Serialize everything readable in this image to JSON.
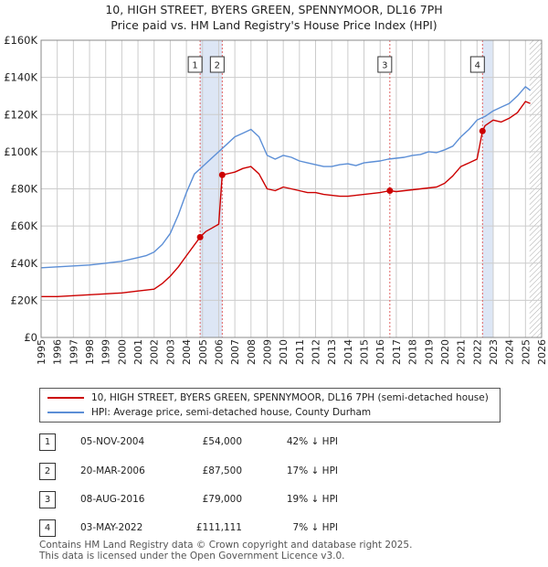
{
  "title_line1": "10, HIGH STREET, BYERS GREEN, SPENNYMOOR, DL16 7PH",
  "title_line2": "Price paid vs. HM Land Registry's House Price Index (HPI)",
  "colors": {
    "red": "#cc0000",
    "blue": "#5b8ed6",
    "shade": "#dde6f5",
    "grid": "#cccccc",
    "vline": "#e06060"
  },
  "legend": {
    "red_label": "10, HIGH STREET, BYERS GREEN, SPENNYMOOR, DL16 7PH (semi-detached house)",
    "blue_label": "HPI: Average price, semi-detached house, County Durham"
  },
  "transactions": [
    {
      "num": "1",
      "date": "05-NOV-2004",
      "price": "£54,000",
      "hpi": "42% ↓ HPI"
    },
    {
      "num": "2",
      "date": "20-MAR-2006",
      "price": "£87,500",
      "hpi": "17% ↓ HPI"
    },
    {
      "num": "3",
      "date": "08-AUG-2016",
      "price": "£79,000",
      "hpi": "19% ↓ HPI"
    },
    {
      "num": "4",
      "date": "03-MAY-2022",
      "price": "£111,111",
      "hpi": "7% ↓ HPI"
    }
  ],
  "footer": {
    "line1": "Contains HM Land Registry data © Crown copyright and database right 2025.",
    "line2": "This data is licensed under the Open Government Licence v3.0."
  },
  "chart_data": {
    "type": "line",
    "title": "10, HIGH STREET, BYERS GREEN, SPENNYMOOR, DL16 7PH",
    "subtitle": "Price paid vs. HM Land Registry's House Price Index (HPI)",
    "xlim": [
      1995,
      2026
    ],
    "ylim": [
      0,
      160000
    ],
    "y_ticks": [
      0,
      20000,
      40000,
      60000,
      80000,
      100000,
      120000,
      140000,
      160000
    ],
    "y_tick_labels": [
      "£0",
      "£20K",
      "£40K",
      "£60K",
      "£80K",
      "£100K",
      "£120K",
      "£140K",
      "£160K"
    ],
    "x_ticks": [
      1995,
      1996,
      1997,
      1998,
      1999,
      2000,
      2001,
      2002,
      2003,
      2004,
      2005,
      2006,
      2007,
      2008,
      2009,
      2010,
      2011,
      2012,
      2013,
      2014,
      2015,
      2016,
      2017,
      2018,
      2019,
      2020,
      2021,
      2022,
      2023,
      2024,
      2025,
      2026
    ],
    "x_tick_labels": [
      "1995",
      "1996",
      "1997",
      "1998",
      "1999",
      "2000",
      "2001",
      "2002",
      "2003",
      "2004",
      "2005",
      "2006",
      "2007",
      "2008",
      "2009",
      "2010",
      "2011",
      "2012",
      "2013",
      "2014",
      "2015",
      "2016",
      "2017",
      "2018",
      "2019",
      "2020",
      "2021",
      "2022",
      "2023",
      "2024",
      "2025",
      "2026"
    ],
    "shaded_ranges": [
      [
        2004.85,
        2006.22
      ],
      [
        2022.34,
        2023.0
      ]
    ],
    "hatched_from": 2025.25,
    "markers": [
      {
        "label": "1",
        "x": 2004.85,
        "y": 54000
      },
      {
        "label": "2",
        "x": 2006.22,
        "y": 87500
      },
      {
        "label": "3",
        "x": 2016.6,
        "y": 79000
      },
      {
        "label": "4",
        "x": 2022.34,
        "y": 111111
      }
    ],
    "series": [
      {
        "name": "HPI: Average price, semi-detached house, County Durham",
        "color": "#5b8ed6",
        "x": [
          1995,
          1996,
          1997,
          1998,
          1999,
          2000,
          2001,
          2001.5,
          2002,
          2002.5,
          2003,
          2003.5,
          2004,
          2004.5,
          2005,
          2005.5,
          2006,
          2006.5,
          2007,
          2007.5,
          2008,
          2008.5,
          2009,
          2009.5,
          2010,
          2010.5,
          2011,
          2011.5,
          2012,
          2012.5,
          2013,
          2013.5,
          2014,
          2014.5,
          2015,
          2015.5,
          2016,
          2016.5,
          2017,
          2017.5,
          2018,
          2018.5,
          2019,
          2019.5,
          2020,
          2020.5,
          2021,
          2021.5,
          2022,
          2022.5,
          2023,
          2023.5,
          2024,
          2024.5,
          2025,
          2025.3
        ],
        "values": [
          37500,
          38000,
          38500,
          39000,
          40000,
          41000,
          43000,
          44000,
          46000,
          50000,
          56000,
          66000,
          78000,
          88000,
          92000,
          96000,
          100000,
          104000,
          108000,
          110000,
          112000,
          108000,
          98000,
          96000,
          98000,
          97000,
          95000,
          94000,
          93000,
          92000,
          92000,
          93000,
          93500,
          92500,
          94000,
          94500,
          95000,
          96000,
          96500,
          97000,
          98000,
          98500,
          100000,
          99500,
          101000,
          103000,
          108000,
          112000,
          117000,
          119000,
          122000,
          124000,
          126000,
          130000,
          135000,
          133000
        ]
      },
      {
        "name": "10, HIGH STREET, BYERS GREEN, SPENNYMOOR, DL16 7PH (semi-detached house)",
        "color": "#cc0000",
        "x": [
          1995,
          1996,
          1997,
          1998,
          1999,
          2000,
          2001,
          2001.5,
          2002,
          2002.5,
          2003,
          2003.5,
          2004,
          2004.85,
          2005.2,
          2005.6,
          2006.0,
          2006.22,
          2006.5,
          2007,
          2007.5,
          2008,
          2008.5,
          2009,
          2009.5,
          2010,
          2010.5,
          2011,
          2011.5,
          2012,
          2012.5,
          2013,
          2013.5,
          2014,
          2014.5,
          2015,
          2015.5,
          2016,
          2016.6,
          2017,
          2017.5,
          2018,
          2018.5,
          2019,
          2019.5,
          2020,
          2020.5,
          2021,
          2021.5,
          2022,
          2022.34,
          2022.5,
          2023,
          2023.5,
          2024,
          2024.5,
          2025,
          2025.3
        ],
        "values": [
          22000,
          22000,
          22500,
          23000,
          23500,
          24000,
          25000,
          25500,
          26000,
          29000,
          33000,
          38000,
          44000,
          54000,
          57000,
          59000,
          61000,
          87500,
          88000,
          89000,
          91000,
          92000,
          88000,
          80000,
          79000,
          81000,
          80000,
          79000,
          78000,
          78000,
          77000,
          76500,
          76000,
          76000,
          76500,
          77000,
          77500,
          78000,
          79000,
          78500,
          79000,
          79500,
          80000,
          80500,
          81000,
          83000,
          87000,
          92000,
          94000,
          96000,
          111111,
          114000,
          117000,
          116000,
          118000,
          121000,
          127000,
          126000
        ]
      }
    ]
  }
}
